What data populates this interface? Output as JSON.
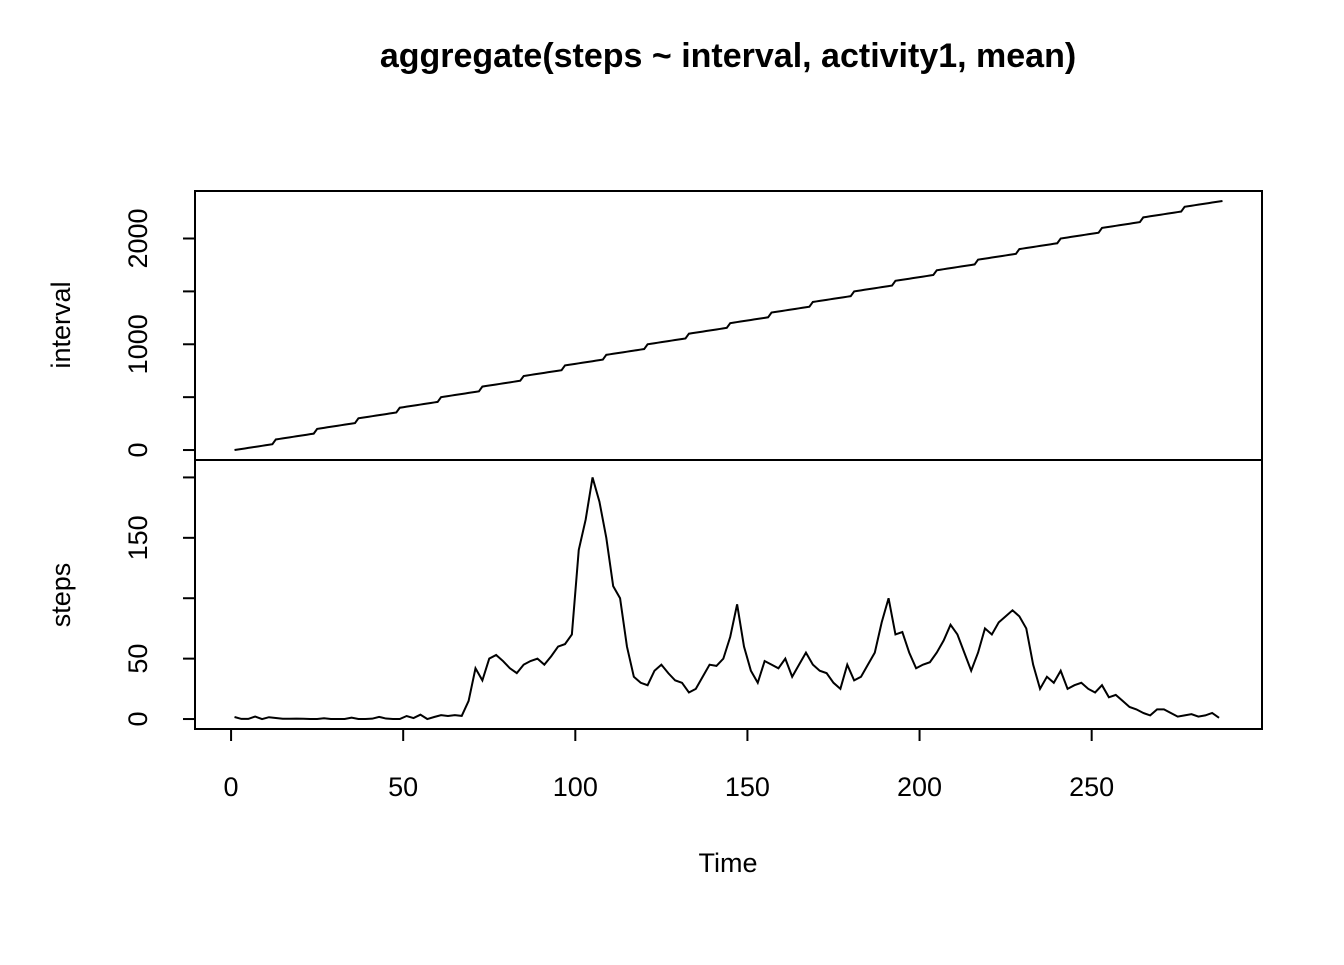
{
  "chart_data": [
    {
      "type": "line",
      "title": "aggregate(steps ~ interval, activity1, mean)",
      "ylabel": "interval",
      "color": "#000000",
      "xlim": [
        -10.48,
        299.48
      ],
      "ylim": [
        -94.2,
        2449.2
      ],
      "yticks": [
        0,
        1000,
        2000
      ],
      "minor_yticks": [
        500,
        1500
      ],
      "x": [
        1,
        2,
        3,
        4,
        5,
        6,
        7,
        8,
        9,
        10,
        11,
        12,
        13,
        14,
        15,
        16,
        17,
        18,
        19,
        20,
        21,
        22,
        23,
        24,
        25,
        26,
        27,
        28,
        29,
        30,
        31,
        32,
        33,
        34,
        35,
        36,
        37,
        38,
        39,
        40,
        41,
        42,
        43,
        44,
        45,
        46,
        47,
        48,
        49,
        50,
        51,
        52,
        53,
        54,
        55,
        56,
        57,
        58,
        59,
        60,
        61,
        62,
        63,
        64,
        65,
        66,
        67,
        68,
        69,
        70,
        71,
        72,
        73,
        74,
        75,
        76,
        77,
        78,
        79,
        80,
        81,
        82,
        83,
        84,
        85,
        86,
        87,
        88,
        89,
        90,
        91,
        92,
        93,
        94,
        95,
        96,
        97,
        98,
        99,
        100,
        101,
        102,
        103,
        104,
        105,
        106,
        107,
        108,
        109,
        110,
        111,
        112,
        113,
        114,
        115,
        116,
        117,
        118,
        119,
        120,
        121,
        122,
        123,
        124,
        125,
        126,
        127,
        128,
        129,
        130,
        131,
        132,
        133,
        134,
        135,
        136,
        137,
        138,
        139,
        140,
        141,
        142,
        143,
        144,
        145,
        146,
        147,
        148,
        149,
        150,
        151,
        152,
        153,
        154,
        155,
        156,
        157,
        158,
        159,
        160,
        161,
        162,
        163,
        164,
        165,
        166,
        167,
        168,
        169,
        170,
        171,
        172,
        173,
        174,
        175,
        176,
        177,
        178,
        179,
        180,
        181,
        182,
        183,
        184,
        185,
        186,
        187,
        188,
        189,
        190,
        191,
        192,
        193,
        194,
        195,
        196,
        197,
        198,
        199,
        200,
        201,
        202,
        203,
        204,
        205,
        206,
        207,
        208,
        209,
        210,
        211,
        212,
        213,
        214,
        215,
        216,
        217,
        218,
        219,
        220,
        221,
        222,
        223,
        224,
        225,
        226,
        227,
        228,
        229,
        230,
        231,
        232,
        233,
        234,
        235,
        236,
        237,
        238,
        239,
        240,
        241,
        242,
        243,
        244,
        245,
        246,
        247,
        248,
        249,
        250,
        251,
        252,
        253,
        254,
        255,
        256,
        257,
        258,
        259,
        260,
        261,
        262,
        263,
        264,
        265,
        266,
        267,
        268,
        269,
        270,
        271,
        272,
        273,
        274,
        275,
        276,
        277,
        278,
        279,
        280,
        281,
        282,
        283,
        284,
        285,
        286,
        287,
        288
      ],
      "values": [
        0,
        5,
        10,
        15,
        20,
        25,
        30,
        35,
        40,
        45,
        50,
        55,
        100,
        105,
        110,
        115,
        120,
        125,
        130,
        135,
        140,
        145,
        150,
        155,
        200,
        205,
        210,
        215,
        220,
        225,
        230,
        235,
        240,
        245,
        250,
        255,
        300,
        305,
        310,
        315,
        320,
        325,
        330,
        335,
        340,
        345,
        350,
        355,
        400,
        405,
        410,
        415,
        420,
        425,
        430,
        435,
        440,
        445,
        450,
        455,
        500,
        505,
        510,
        515,
        520,
        525,
        530,
        535,
        540,
        545,
        550,
        555,
        600,
        605,
        610,
        615,
        620,
        625,
        630,
        635,
        640,
        645,
        650,
        655,
        700,
        705,
        710,
        715,
        720,
        725,
        730,
        735,
        740,
        745,
        750,
        755,
        800,
        805,
        810,
        815,
        820,
        825,
        830,
        835,
        840,
        845,
        850,
        855,
        900,
        905,
        910,
        915,
        920,
        925,
        930,
        935,
        940,
        945,
        950,
        955,
        1000,
        1005,
        1010,
        1015,
        1020,
        1025,
        1030,
        1035,
        1040,
        1045,
        1050,
        1055,
        1100,
        1105,
        1110,
        1115,
        1120,
        1125,
        1130,
        1135,
        1140,
        1145,
        1150,
        1155,
        1200,
        1205,
        1210,
        1215,
        1220,
        1225,
        1230,
        1235,
        1240,
        1245,
        1250,
        1255,
        1300,
        1305,
        1310,
        1315,
        1320,
        1325,
        1330,
        1335,
        1340,
        1345,
        1350,
        1355,
        1400,
        1405,
        1410,
        1415,
        1420,
        1425,
        1430,
        1435,
        1440,
        1445,
        1450,
        1455,
        1500,
        1505,
        1510,
        1515,
        1520,
        1525,
        1530,
        1535,
        1540,
        1545,
        1550,
        1555,
        1600,
        1605,
        1610,
        1615,
        1620,
        1625,
        1630,
        1635,
        1640,
        1645,
        1650,
        1655,
        1700,
        1705,
        1710,
        1715,
        1720,
        1725,
        1730,
        1735,
        1740,
        1745,
        1750,
        1755,
        1800,
        1805,
        1810,
        1815,
        1820,
        1825,
        1830,
        1835,
        1840,
        1845,
        1850,
        1855,
        1900,
        1905,
        1910,
        1915,
        1920,
        1925,
        1930,
        1935,
        1940,
        1945,
        1950,
        1955,
        2000,
        2005,
        2010,
        2015,
        2020,
        2025,
        2030,
        2035,
        2040,
        2045,
        2050,
        2055,
        2100,
        2105,
        2110,
        2115,
        2120,
        2125,
        2130,
        2135,
        2140,
        2145,
        2150,
        2155,
        2200,
        2205,
        2210,
        2215,
        2220,
        2225,
        2230,
        2235,
        2240,
        2245,
        2250,
        2255,
        2300,
        2305,
        2310,
        2315,
        2320,
        2325,
        2330,
        2335,
        2340,
        2345,
        2350,
        2355
      ]
    },
    {
      "type": "line",
      "ylabel": "steps",
      "xlabel": "Time",
      "color": "#000000",
      "xlim": [
        -10.48,
        299.48
      ],
      "xticks": [
        0,
        50,
        100,
        150,
        200,
        250
      ],
      "ylim": [
        -8.25,
        214.42
      ],
      "yticks": [
        0,
        50,
        150
      ],
      "minor_yticks": [
        100,
        200
      ],
      "x": [
        1,
        3,
        5,
        7,
        9,
        11,
        13,
        15,
        17,
        19,
        21,
        23,
        25,
        27,
        29,
        31,
        33,
        35,
        37,
        39,
        41,
        43,
        45,
        47,
        49,
        51,
        53,
        55,
        57,
        59,
        61,
        63,
        65,
        67,
        69,
        71,
        73,
        75,
        77,
        79,
        81,
        83,
        85,
        87,
        89,
        91,
        93,
        95,
        97,
        99,
        101,
        103,
        105,
        107,
        109,
        111,
        113,
        115,
        117,
        119,
        121,
        123,
        125,
        127,
        129,
        131,
        133,
        135,
        137,
        139,
        141,
        143,
        145,
        147,
        149,
        151,
        153,
        155,
        157,
        159,
        161,
        163,
        165,
        167,
        169,
        171,
        173,
        175,
        177,
        179,
        181,
        183,
        185,
        187,
        189,
        191,
        193,
        195,
        197,
        199,
        201,
        203,
        205,
        207,
        209,
        211,
        213,
        215,
        217,
        219,
        221,
        223,
        225,
        227,
        229,
        231,
        233,
        235,
        237,
        239,
        241,
        243,
        245,
        247,
        249,
        251,
        253,
        255,
        257,
        259,
        261,
        263,
        265,
        267,
        269,
        271,
        273,
        275,
        277,
        279,
        281,
        283,
        285,
        287
      ],
      "values": [
        1.7,
        0.1,
        0.1,
        2.1,
        0,
        1.5,
        0.9,
        0.2,
        0.2,
        0.3,
        0.2,
        0,
        0,
        0.6,
        0,
        0,
        0,
        1.1,
        0,
        0,
        0.3,
        1.8,
        0.4,
        0,
        0,
        2.5,
        0.8,
        3.6,
        0,
        1.7,
        3.2,
        2.5,
        3.2,
        2.6,
        15,
        42,
        32,
        50,
        53,
        48,
        42,
        38,
        45,
        48,
        50,
        45,
        52,
        60,
        62,
        70,
        140,
        165,
        200,
        180,
        150,
        110,
        100,
        60,
        35,
        30,
        28,
        40,
        45,
        38,
        32,
        30,
        22,
        25,
        35,
        45,
        44,
        50,
        68,
        95,
        60,
        40,
        30,
        48,
        45,
        42,
        50,
        35,
        45,
        55,
        45,
        40,
        38,
        30,
        25,
        45,
        32,
        35,
        45,
        55,
        80,
        100,
        70,
        72,
        55,
        42,
        45,
        47,
        55,
        65,
        78,
        70,
        55,
        40,
        55,
        75,
        70,
        80,
        85,
        90,
        85,
        75,
        45,
        25,
        35,
        30,
        40,
        25,
        28,
        30,
        25,
        22,
        28,
        18,
        20,
        15,
        10,
        8,
        5,
        3,
        8,
        8,
        5,
        2,
        3,
        4,
        2,
        3,
        5,
        1
      ]
    }
  ]
}
